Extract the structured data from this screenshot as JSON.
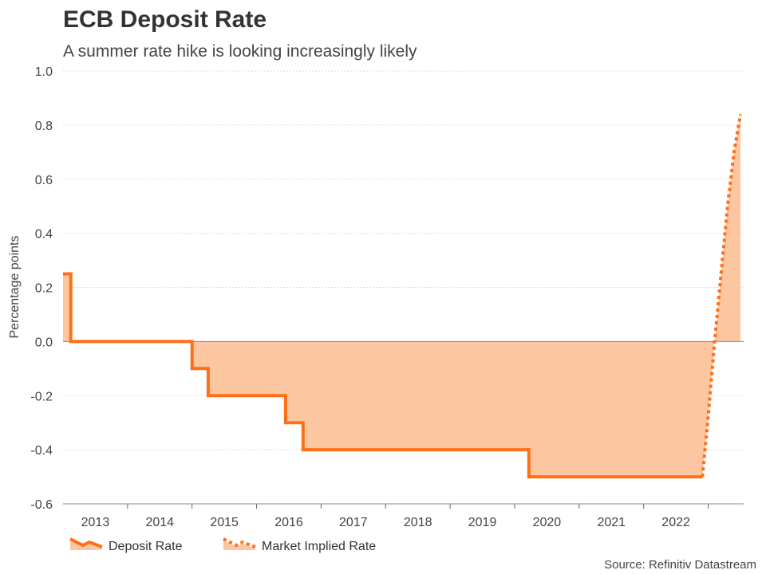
{
  "header": {
    "title": "ECB Deposit Rate",
    "subtitle": "A summer rate hike is looking increasingly likely"
  },
  "source": "Source: Refinitiv Datastream",
  "colors": {
    "line": "#ff6f17",
    "fill": "#fcc6a0",
    "zero": "#888888",
    "grid": "#dddddd"
  },
  "chart_data": {
    "type": "line",
    "ylabel": "Percentage points",
    "xlabel": "",
    "ylim": [
      -0.6,
      1.0
    ],
    "yticks": [
      1.0,
      0.8,
      0.6,
      0.4,
      0.2,
      0.0,
      -0.2,
      -0.4,
      -0.6
    ],
    "ytick_labels": [
      "1.0",
      "0.8",
      "0.6",
      "0.4",
      "0.2",
      "0.0",
      "-0.2",
      "-0.4",
      "-0.6"
    ],
    "xlim": [
      2012.5,
      2023.05
    ],
    "xtick_labels": [
      "2013",
      "2014",
      "2015",
      "2016",
      "2017",
      "2018",
      "2019",
      "2020",
      "2021",
      "2022"
    ],
    "xtick_positions": [
      2013,
      2014,
      2015,
      2016,
      2017,
      2018,
      2019,
      2020,
      2021,
      2022
    ],
    "grid": true,
    "legend": {
      "position": "bottom-left",
      "entries": [
        "Deposit Rate",
        "Market Implied Rate"
      ]
    },
    "series": [
      {
        "name": "Deposit Rate",
        "style": "solid",
        "step": true,
        "points": [
          [
            2012.5,
            0.25
          ],
          [
            2012.62,
            0.0
          ],
          [
            2014.5,
            -0.1
          ],
          [
            2014.75,
            -0.2
          ],
          [
            2015.95,
            -0.3
          ],
          [
            2016.22,
            -0.4
          ],
          [
            2019.72,
            -0.5
          ],
          [
            2022.41,
            -0.5
          ]
        ]
      },
      {
        "name": "Market Implied Rate",
        "style": "dotted",
        "step": false,
        "points": [
          [
            2022.41,
            -0.5
          ],
          [
            2022.5,
            -0.28
          ],
          [
            2022.6,
            0.0
          ],
          [
            2022.7,
            0.25
          ],
          [
            2022.8,
            0.5
          ],
          [
            2022.9,
            0.7
          ],
          [
            2023.0,
            0.84
          ]
        ]
      }
    ]
  }
}
